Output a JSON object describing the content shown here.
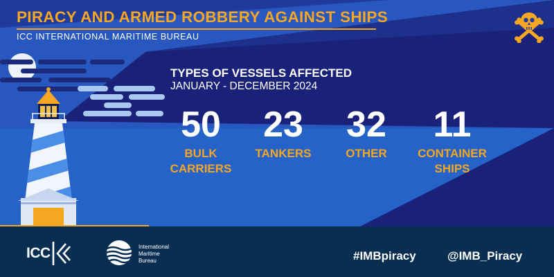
{
  "header": {
    "title": "PIRACY AND ARMED ROBBERY AGAINST SHIPS",
    "subtitle": "ICC INTERNATIONAL MARITIME BUREAU",
    "skull_icon": "skull-crossbones-icon"
  },
  "main": {
    "heading": "TYPES OF VESSELS AFFECTED",
    "period": "JANUARY - DECEMBER 2024",
    "stats": [
      {
        "value": "50",
        "label_line1": "BULK",
        "label_line2": "CARRIERS"
      },
      {
        "value": "23",
        "label_line1": "TANKERS",
        "label_line2": ""
      },
      {
        "value": "32",
        "label_line1": "OTHER",
        "label_line2": ""
      },
      {
        "value": "11",
        "label_line1": "CONTAINER",
        "label_line2": "SHIPS"
      }
    ]
  },
  "footer": {
    "icc_logo_text": "ICC",
    "imb_name_line1": "International",
    "imb_name_line2": "Maritime",
    "imb_name_line3": "Bureau",
    "hashtag": "#IMBpiracy",
    "handle": "@IMB_Piracy"
  },
  "colors": {
    "accent": "#f5a623",
    "background_dark": "#1a2178",
    "background_light": "#2a5fc0",
    "footer": "#082f52"
  }
}
